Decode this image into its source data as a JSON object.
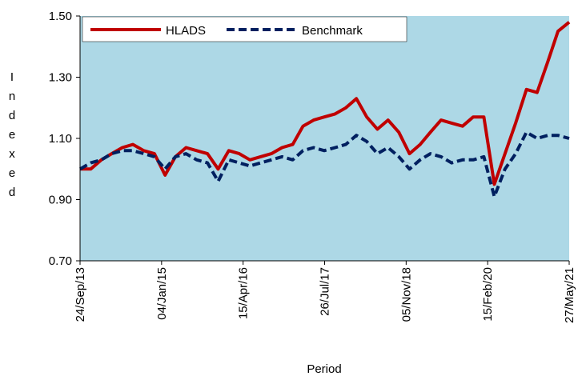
{
  "chart_data": {
    "type": "line",
    "ylabel": "Indexed",
    "xlabel": "Period",
    "x": [
      "2013-09-24",
      "2013-11-24",
      "2014-01-24",
      "2014-03-24",
      "2014-05-24",
      "2014-07-24",
      "2014-09-24",
      "2014-11-24",
      "2015-01-24",
      "2015-03-24",
      "2015-05-24",
      "2015-07-24",
      "2015-09-24",
      "2015-11-24",
      "2016-01-24",
      "2016-03-24",
      "2016-05-24",
      "2016-07-24",
      "2016-09-24",
      "2016-11-24",
      "2017-01-24",
      "2017-03-24",
      "2017-05-24",
      "2017-07-24",
      "2017-09-24",
      "2017-11-24",
      "2018-01-24",
      "2018-03-24",
      "2018-05-24",
      "2018-07-24",
      "2018-09-24",
      "2018-11-24",
      "2019-01-24",
      "2019-03-24",
      "2019-05-24",
      "2019-07-24",
      "2019-09-24",
      "2019-11-24",
      "2020-01-24",
      "2020-03-24",
      "2020-05-24",
      "2020-07-24",
      "2020-09-24",
      "2020-11-24",
      "2021-01-24",
      "2021-03-24",
      "2021-05-27"
    ],
    "series": [
      {
        "name": "HLADS",
        "color": "#c00000",
        "dash": false,
        "values": [
          1.0,
          1.0,
          1.03,
          1.05,
          1.07,
          1.08,
          1.06,
          1.05,
          0.98,
          1.04,
          1.07,
          1.06,
          1.05,
          1.0,
          1.06,
          1.05,
          1.03,
          1.04,
          1.05,
          1.07,
          1.08,
          1.14,
          1.16,
          1.17,
          1.18,
          1.2,
          1.23,
          1.17,
          1.13,
          1.16,
          1.12,
          1.05,
          1.08,
          1.12,
          1.16,
          1.15,
          1.14,
          1.17,
          1.17,
          0.95,
          1.05,
          1.15,
          1.26,
          1.25,
          1.35,
          1.45,
          1.48
        ]
      },
      {
        "name": "Benchmark",
        "color": "#002060",
        "dash": true,
        "values": [
          1.0,
          1.02,
          1.03,
          1.05,
          1.06,
          1.06,
          1.05,
          1.04,
          1.0,
          1.04,
          1.05,
          1.03,
          1.02,
          0.96,
          1.03,
          1.02,
          1.01,
          1.02,
          1.03,
          1.04,
          1.03,
          1.06,
          1.07,
          1.06,
          1.07,
          1.08,
          1.11,
          1.09,
          1.05,
          1.07,
          1.04,
          1.0,
          1.03,
          1.05,
          1.04,
          1.02,
          1.03,
          1.03,
          1.04,
          0.91,
          1.0,
          1.05,
          1.12,
          1.1,
          1.11,
          1.11,
          1.1
        ]
      }
    ],
    "xlim": [
      "2013-09-24",
      "2021-05-27"
    ],
    "xticks": [
      {
        "value": "2013-09-24",
        "label": "24/Sep/13"
      },
      {
        "value": "2015-01-04",
        "label": "04/Jan/15"
      },
      {
        "value": "2016-04-15",
        "label": "15/Apr/16"
      },
      {
        "value": "2017-07-26",
        "label": "26/Jul/17"
      },
      {
        "value": "2018-11-05",
        "label": "05/Nov/18"
      },
      {
        "value": "2020-02-15",
        "label": "15/Feb/20"
      },
      {
        "value": "2021-05-27",
        "label": "27/May/21"
      }
    ],
    "ylim": [
      0.7,
      1.5
    ],
    "yticks": [
      {
        "value": 0.7,
        "label": "0.70"
      },
      {
        "value": 0.9,
        "label": "0.90"
      },
      {
        "value": 1.1,
        "label": "1.10"
      },
      {
        "value": 1.3,
        "label": "1.30"
      },
      {
        "value": 1.5,
        "label": "1.50"
      }
    ],
    "plot_background": "#add8e6",
    "legend": "upper left"
  }
}
